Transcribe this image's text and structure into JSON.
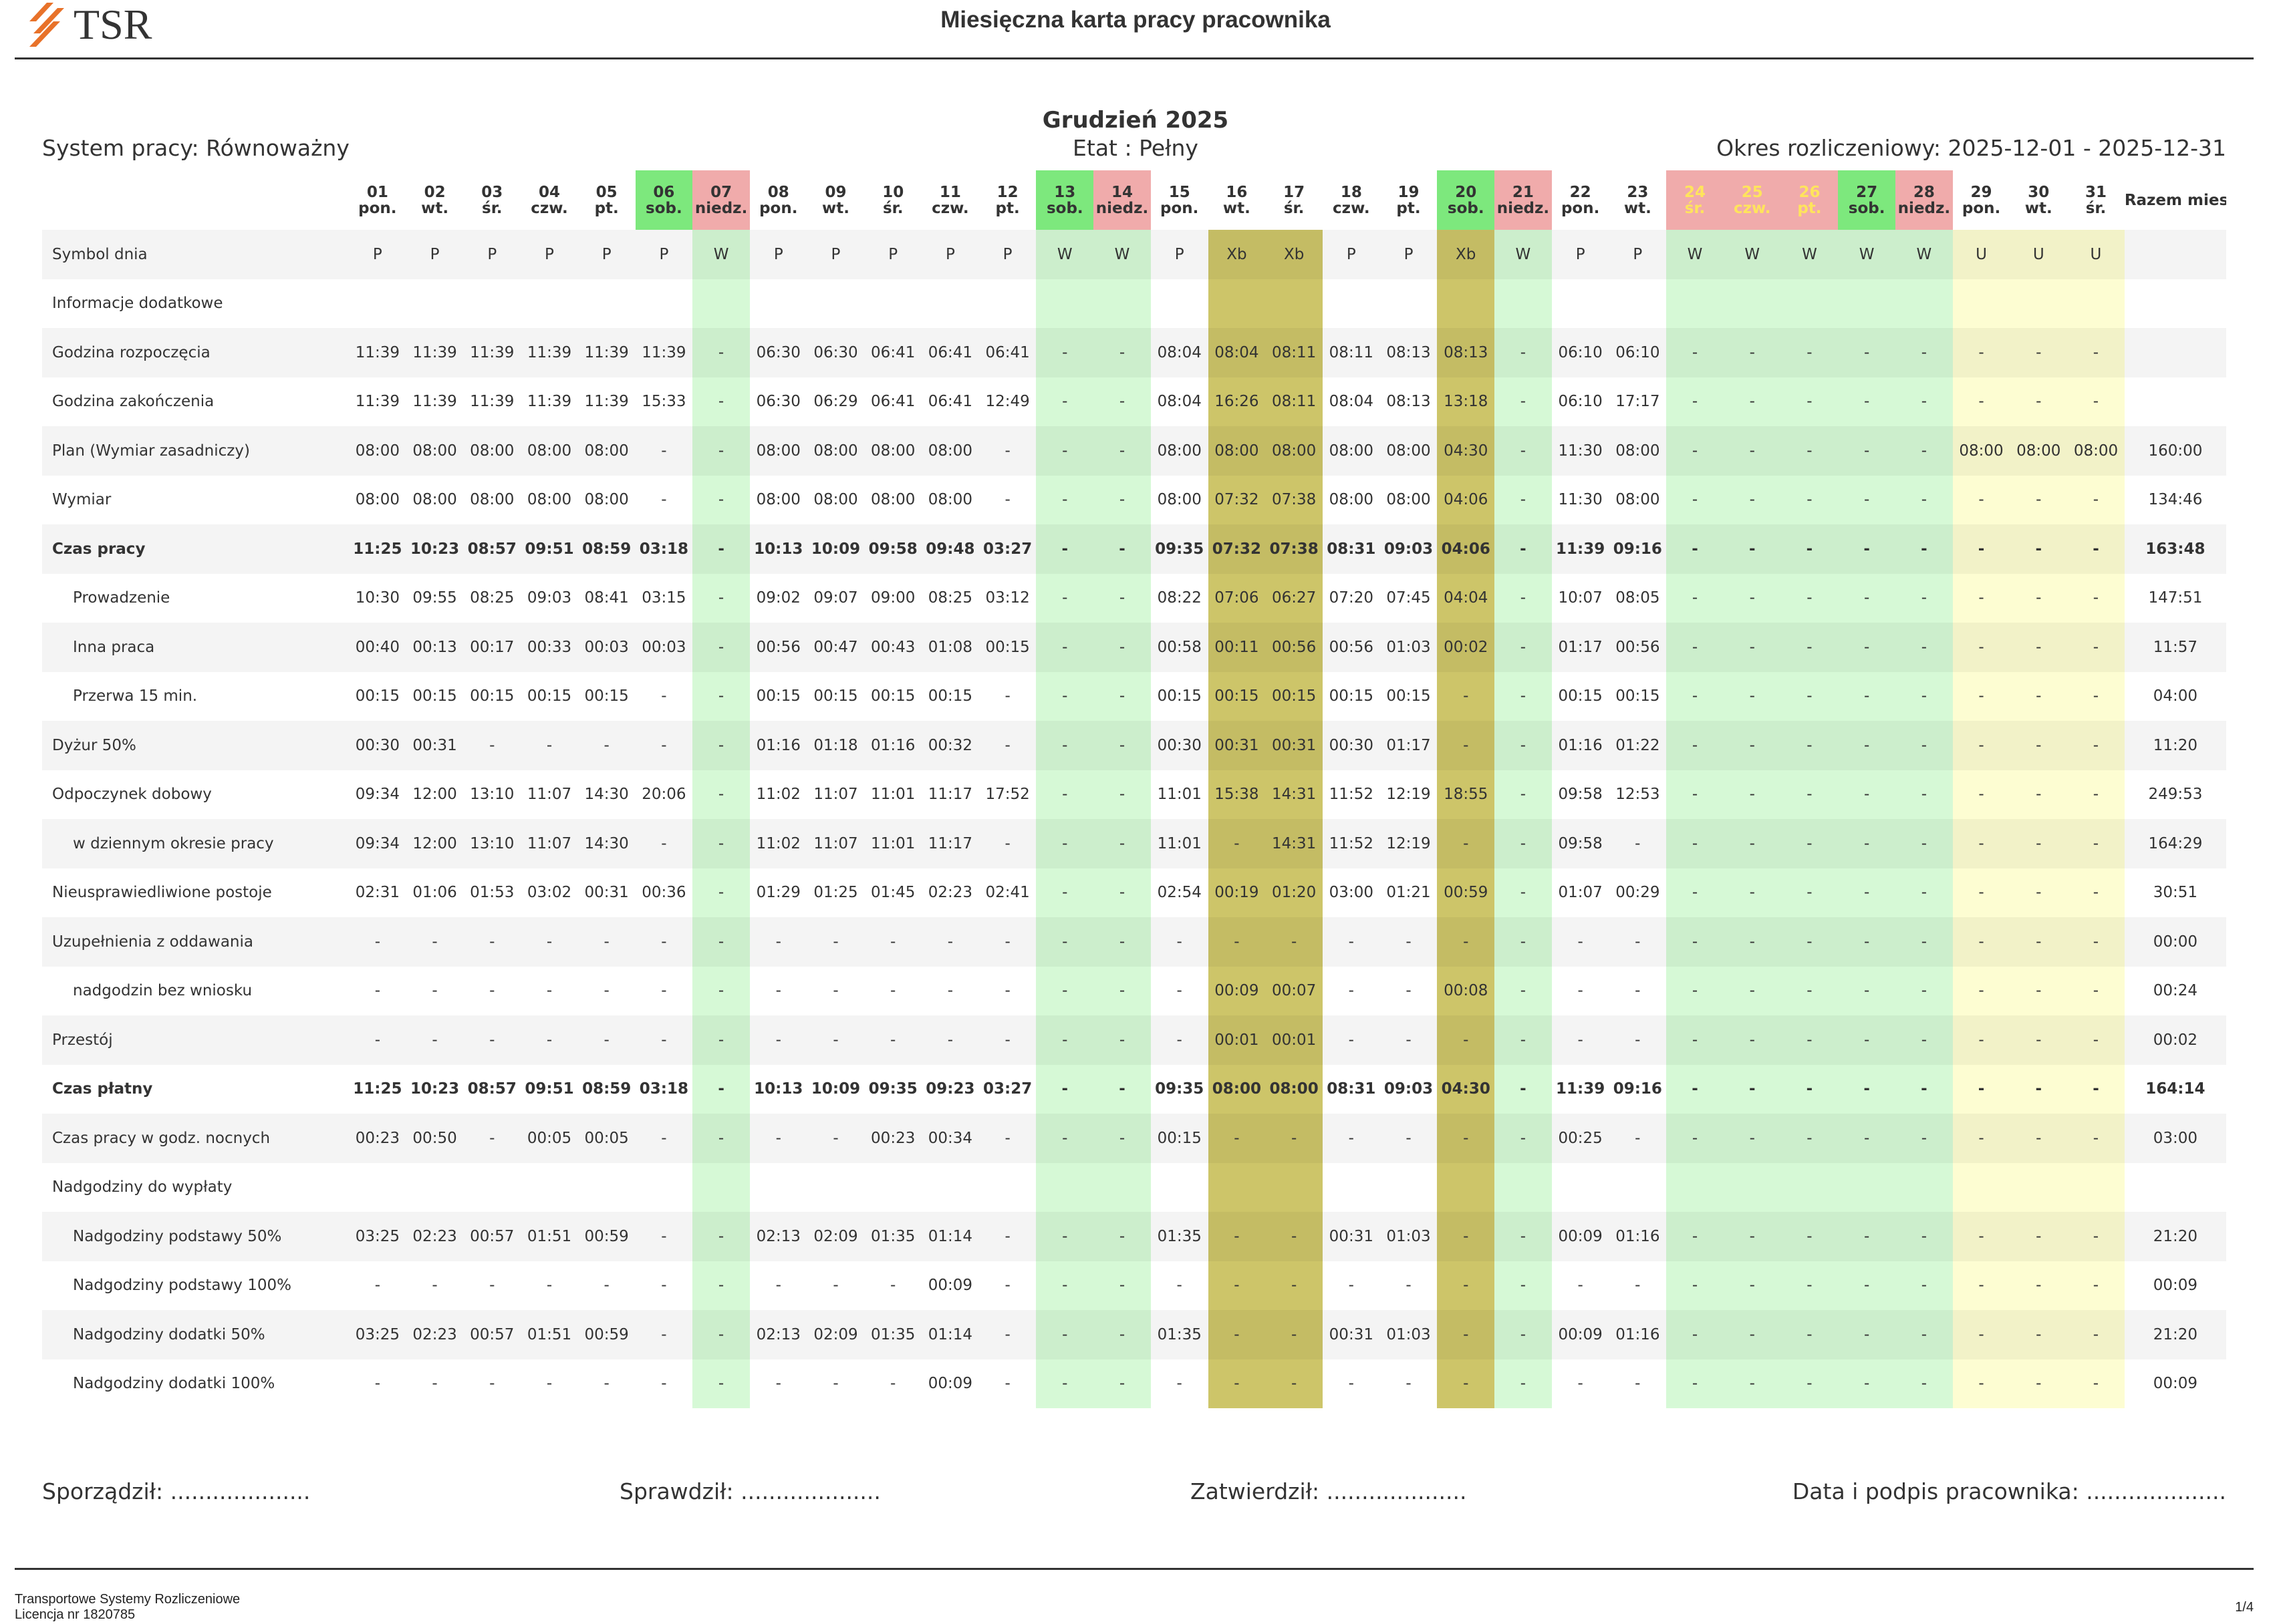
{
  "header": {
    "logo": "TSR",
    "title": "Miesięczna karta pracy pracownika"
  },
  "period": {
    "month": "Grudzień 2025",
    "system": "System pracy: Równoważny",
    "etat": "Etat : Pełny",
    "okres": "Okres rozliczeniowy: 2025-12-01 - 2025-12-31"
  },
  "table": {
    "days": [
      {
        "day": "01",
        "weekday": "pon."
      },
      {
        "day": "02",
        "weekday": "wt."
      },
      {
        "day": "03",
        "weekday": "śr."
      },
      {
        "day": "04",
        "weekday": "czw."
      },
      {
        "day": "05",
        "weekday": "pt."
      },
      {
        "day": "06",
        "weekday": "sob."
      },
      {
        "day": "07",
        "weekday": "niedz."
      },
      {
        "day": "08",
        "weekday": "pon."
      },
      {
        "day": "09",
        "weekday": "wt."
      },
      {
        "day": "10",
        "weekday": "śr."
      },
      {
        "day": "11",
        "weekday": "czw."
      },
      {
        "day": "12",
        "weekday": "pt."
      },
      {
        "day": "13",
        "weekday": "sob."
      },
      {
        "day": "14",
        "weekday": "niedz."
      },
      {
        "day": "15",
        "weekday": "pon."
      },
      {
        "day": "16",
        "weekday": "wt."
      },
      {
        "day": "17",
        "weekday": "śr."
      },
      {
        "day": "18",
        "weekday": "czw."
      },
      {
        "day": "19",
        "weekday": "pt."
      },
      {
        "day": "20",
        "weekday": "sob."
      },
      {
        "day": "21",
        "weekday": "niedz."
      },
      {
        "day": "22",
        "weekday": "pon."
      },
      {
        "day": "23",
        "weekday": "wt."
      },
      {
        "day": "24",
        "weekday": "śr."
      },
      {
        "day": "25",
        "weekday": "czw."
      },
      {
        "day": "26",
        "weekday": "pt."
      },
      {
        "day": "27",
        "weekday": "sob."
      },
      {
        "day": "28",
        "weekday": "niedz."
      },
      {
        "day": "29",
        "weekday": "pon."
      },
      {
        "day": "30",
        "weekday": "wt."
      },
      {
        "day": "31",
        "weekday": "śr."
      }
    ],
    "total_header": "Razem mies.",
    "rows": [
      {
        "label": "Symbol dnia",
        "cells": [
          "P",
          "P",
          "P",
          "P",
          "P",
          "P",
          "W",
          "P",
          "P",
          "P",
          "P",
          "P",
          "W",
          "W",
          "P",
          "Xb",
          "Xb",
          "P",
          "P",
          "Xb",
          "W",
          "P",
          "P",
          "W",
          "W",
          "W",
          "W",
          "W",
          "U",
          "U",
          "U"
        ],
        "total": null
      },
      {
        "label": "Informacje dodatkowe",
        "cells": [
          null,
          null,
          null,
          null,
          null,
          null,
          null,
          null,
          null,
          null,
          null,
          null,
          null,
          null,
          null,
          null,
          null,
          null,
          null,
          null,
          null,
          null,
          null,
          null,
          null,
          null,
          null,
          null,
          null,
          null,
          null
        ],
        "total": null
      },
      {
        "label": "Godzina rozpoczęcia",
        "cells": [
          "11:39",
          "11:39",
          "11:39",
          "11:39",
          "11:39",
          "11:39",
          "-",
          "06:30",
          "06:30",
          "06:41",
          "06:41",
          "06:41",
          "-",
          "-",
          "08:04",
          "08:04",
          "08:11",
          "08:11",
          "08:13",
          "08:13",
          "-",
          "06:10",
          "06:10",
          "-",
          "-",
          "-",
          "-",
          "-",
          "-",
          "-",
          "-"
        ],
        "total": null
      },
      {
        "label": "Godzina zakończenia",
        "cells": [
          "11:39",
          "11:39",
          "11:39",
          "11:39",
          "11:39",
          "15:33",
          "-",
          "06:30",
          "06:29",
          "06:41",
          "06:41",
          "12:49",
          "-",
          "-",
          "08:04",
          "16:26",
          "08:11",
          "08:04",
          "08:13",
          "13:18",
          "-",
          "06:10",
          "17:17",
          "-",
          "-",
          "-",
          "-",
          "-",
          "-",
          "-",
          "-"
        ],
        "total": null
      },
      {
        "label": "Plan (Wymiar zasadniczy)",
        "cells": [
          "08:00",
          "08:00",
          "08:00",
          "08:00",
          "08:00",
          "-",
          "-",
          "08:00",
          "08:00",
          "08:00",
          "08:00",
          "-",
          "-",
          "-",
          "08:00",
          "08:00",
          "08:00",
          "08:00",
          "08:00",
          "04:30",
          "-",
          "11:30",
          "08:00",
          "-",
          "-",
          "-",
          "-",
          "-",
          "08:00",
          "08:00",
          "08:00"
        ],
        "total": "160:00"
      },
      {
        "label": "Wymiar",
        "cells": [
          "08:00",
          "08:00",
          "08:00",
          "08:00",
          "08:00",
          "-",
          "-",
          "08:00",
          "08:00",
          "08:00",
          "08:00",
          "-",
          "-",
          "-",
          "08:00",
          "07:32",
          "07:38",
          "08:00",
          "08:00",
          "04:06",
          "-",
          "11:30",
          "08:00",
          "-",
          "-",
          "-",
          "-",
          "-",
          "-",
          "-",
          "-"
        ],
        "total": "134:46"
      },
      {
        "label": "Czas pracy",
        "cells": [
          "11:25",
          "10:23",
          "08:57",
          "09:51",
          "08:59",
          "03:18",
          "-",
          "10:13",
          "10:09",
          "09:58",
          "09:48",
          "03:27",
          "-",
          "-",
          "09:35",
          "07:32",
          "07:38",
          "08:31",
          "09:03",
          "04:06",
          "-",
          "11:39",
          "09:16",
          "-",
          "-",
          "-",
          "-",
          "-",
          "-",
          "-",
          "-"
        ],
        "total": "163:48"
      },
      {
        "label": "Prowadzenie",
        "cells": [
          "10:30",
          "09:55",
          "08:25",
          "09:03",
          "08:41",
          "03:15",
          "-",
          "09:02",
          "09:07",
          "09:00",
          "08:25",
          "03:12",
          "-",
          "-",
          "08:22",
          "07:06",
          "06:27",
          "07:20",
          "07:45",
          "04:04",
          "-",
          "10:07",
          "08:05",
          "-",
          "-",
          "-",
          "-",
          "-",
          "-",
          "-",
          "-"
        ],
        "total": "147:51"
      },
      {
        "label": "Inna praca",
        "cells": [
          "00:40",
          "00:13",
          "00:17",
          "00:33",
          "00:03",
          "00:03",
          "-",
          "00:56",
          "00:47",
          "00:43",
          "01:08",
          "00:15",
          "-",
          "-",
          "00:58",
          "00:11",
          "00:56",
          "00:56",
          "01:03",
          "00:02",
          "-",
          "01:17",
          "00:56",
          "-",
          "-",
          "-",
          "-",
          "-",
          "-",
          "-",
          "-"
        ],
        "total": "11:57"
      },
      {
        "label": "Przerwa 15 min.",
        "cells": [
          "00:15",
          "00:15",
          "00:15",
          "00:15",
          "00:15",
          "-",
          "-",
          "00:15",
          "00:15",
          "00:15",
          "00:15",
          "-",
          "-",
          "-",
          "00:15",
          "00:15",
          "00:15",
          "00:15",
          "00:15",
          "-",
          "-",
          "00:15",
          "00:15",
          "-",
          "-",
          "-",
          "-",
          "-",
          "-",
          "-",
          "-"
        ],
        "total": "04:00"
      },
      {
        "label": "Dyżur 50%",
        "cells": [
          "00:30",
          "00:31",
          "-",
          "-",
          "-",
          "-",
          "-",
          "01:16",
          "01:18",
          "01:16",
          "00:32",
          "-",
          "-",
          "-",
          "00:30",
          "00:31",
          "00:31",
          "00:30",
          "01:17",
          "-",
          "-",
          "01:16",
          "01:22",
          "-",
          "-",
          "-",
          "-",
          "-",
          "-",
          "-",
          "-"
        ],
        "total": "11:20"
      },
      {
        "label": "Odpoczynek dobowy",
        "cells": [
          "09:34",
          "12:00",
          "13:10",
          "11:07",
          "14:30",
          "20:06",
          "-",
          "11:02",
          "11:07",
          "11:01",
          "11:17",
          "17:52",
          "-",
          "-",
          "11:01",
          "15:38",
          "14:31",
          "11:52",
          "12:19",
          "18:55",
          "-",
          "09:58",
          "12:53",
          "-",
          "-",
          "-",
          "-",
          "-",
          "-",
          "-",
          "-"
        ],
        "total": "249:53"
      },
      {
        "label": "w dziennym okresie pracy",
        "cells": [
          "09:34",
          "12:00",
          "13:10",
          "11:07",
          "14:30",
          "-",
          "-",
          "11:02",
          "11:07",
          "11:01",
          "11:17",
          "-",
          "-",
          "-",
          "11:01",
          "-",
          "14:31",
          "11:52",
          "12:19",
          "-",
          "-",
          "09:58",
          "-",
          "-",
          "-",
          "-",
          "-",
          "-",
          "-",
          "-",
          "-"
        ],
        "total": "164:29"
      },
      {
        "label": "Nieusprawiedliwione postoje",
        "cells": [
          "02:31",
          "01:06",
          "01:53",
          "03:02",
          "00:31",
          "00:36",
          "-",
          "01:29",
          "01:25",
          "01:45",
          "02:23",
          "02:41",
          "-",
          "-",
          "02:54",
          "00:19",
          "01:20",
          "03:00",
          "01:21",
          "00:59",
          "-",
          "01:07",
          "00:29",
          "-",
          "-",
          "-",
          "-",
          "-",
          "-",
          "-",
          "-"
        ],
        "total": "30:51"
      },
      {
        "label": "Uzupełnienia z oddawania",
        "cells": [
          "-",
          "-",
          "-",
          "-",
          "-",
          "-",
          "-",
          "-",
          "-",
          "-",
          "-",
          "-",
          "-",
          "-",
          "-",
          "-",
          "-",
          "-",
          "-",
          "-",
          "-",
          "-",
          "-",
          "-",
          "-",
          "-",
          "-",
          "-",
          "-",
          "-",
          "-"
        ],
        "total": "00:00"
      },
      {
        "label": "nadgodzin bez wniosku",
        "cells": [
          "-",
          "-",
          "-",
          "-",
          "-",
          "-",
          "-",
          "-",
          "-",
          "-",
          "-",
          "-",
          "-",
          "-",
          "-",
          "00:09",
          "00:07",
          "-",
          "-",
          "00:08",
          "-",
          "-",
          "-",
          "-",
          "-",
          "-",
          "-",
          "-",
          "-",
          "-",
          "-"
        ],
        "total": "00:24"
      },
      {
        "label": "Przestój",
        "cells": [
          "-",
          "-",
          "-",
          "-",
          "-",
          "-",
          "-",
          "-",
          "-",
          "-",
          "-",
          "-",
          "-",
          "-",
          "-",
          "00:01",
          "00:01",
          "-",
          "-",
          "-",
          "-",
          "-",
          "-",
          "-",
          "-",
          "-",
          "-",
          "-",
          "-",
          "-",
          "-"
        ],
        "total": "00:02"
      },
      {
        "label": "Czas płatny",
        "cells": [
          "11:25",
          "10:23",
          "08:57",
          "09:51",
          "08:59",
          "03:18",
          "-",
          "10:13",
          "10:09",
          "09:35",
          "09:23",
          "03:27",
          "-",
          "-",
          "09:35",
          "08:00",
          "08:00",
          "08:31",
          "09:03",
          "04:30",
          "-",
          "11:39",
          "09:16",
          "-",
          "-",
          "-",
          "-",
          "-",
          "-",
          "-",
          "-"
        ],
        "total": "164:14"
      },
      {
        "label": "Czas pracy w godz. nocnych",
        "cells": [
          "00:23",
          "00:50",
          "-",
          "00:05",
          "00:05",
          "-",
          "-",
          "-",
          "-",
          "00:23",
          "00:34",
          "-",
          "-",
          "-",
          "00:15",
          "-",
          "-",
          "-",
          "-",
          "-",
          "-",
          "00:25",
          "-",
          "-",
          "-",
          "-",
          "-",
          "-",
          "-",
          "-",
          "-"
        ],
        "total": "03:00"
      },
      {
        "label": "Nadgodziny do wypłaty",
        "cells": [
          null,
          null,
          null,
          null,
          null,
          null,
          null,
          null,
          null,
          null,
          null,
          null,
          null,
          null,
          null,
          null,
          null,
          null,
          null,
          null,
          null,
          null,
          null,
          null,
          null,
          null,
          null,
          null,
          null,
          null,
          null
        ],
        "total": null
      },
      {
        "label": "Nadgodziny podstawy 50%",
        "cells": [
          "03:25",
          "02:23",
          "00:57",
          "01:51",
          "00:59",
          "-",
          "-",
          "02:13",
          "02:09",
          "01:35",
          "01:14",
          "-",
          "-",
          "-",
          "01:35",
          "-",
          "-",
          "00:31",
          "01:03",
          "-",
          "-",
          "00:09",
          "01:16",
          "-",
          "-",
          "-",
          "-",
          "-",
          "-",
          "-",
          "-"
        ],
        "total": "21:20"
      },
      {
        "label": "Nadgodziny podstawy 100%",
        "cells": [
          "-",
          "-",
          "-",
          "-",
          "-",
          "-",
          "-",
          "-",
          "-",
          "-",
          "00:09",
          "-",
          "-",
          "-",
          "-",
          "-",
          "-",
          "-",
          "-",
          "-",
          "-",
          "-",
          "-",
          "-",
          "-",
          "-",
          "-",
          "-",
          "-",
          "-",
          "-"
        ],
        "total": "00:09"
      },
      {
        "label": "Nadgodziny dodatki 50%",
        "cells": [
          "03:25",
          "02:23",
          "00:57",
          "01:51",
          "00:59",
          "-",
          "-",
          "02:13",
          "02:09",
          "01:35",
          "01:14",
          "-",
          "-",
          "-",
          "01:35",
          "-",
          "-",
          "00:31",
          "01:03",
          "-",
          "-",
          "00:09",
          "01:16",
          "-",
          "-",
          "-",
          "-",
          "-",
          "-",
          "-",
          "-"
        ],
        "total": "21:20"
      },
      {
        "label": "Nadgodziny dodatki 100%",
        "cells": [
          "-",
          "-",
          "-",
          "-",
          "-",
          "-",
          "-",
          "-",
          "-",
          "-",
          "00:09",
          "-",
          "-",
          "-",
          "-",
          "-",
          "-",
          "-",
          "-",
          "-",
          "-",
          "-",
          "-",
          "-",
          "-",
          "-",
          "-",
          "-",
          "-",
          "-",
          "-"
        ],
        "total": "00:09"
      }
    ]
  },
  "signatures": [
    "Sporządził: ....................",
    "Sprawdził: ....................",
    "Zatwierdził: ....................",
    "Data i podpis pracownika: ...................."
  ],
  "footer": {
    "company": "Transportowe Systemy Rozliczeniowe",
    "license": "Licencja nr 1820785",
    "page": "1/4"
  }
}
